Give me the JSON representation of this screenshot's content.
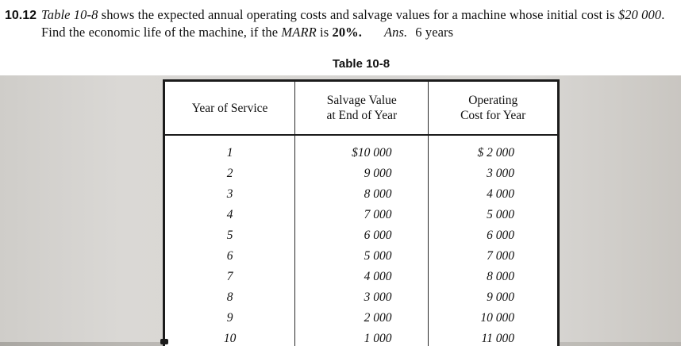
{
  "problem": {
    "number": "10.12",
    "seg_table_ref": "Table 10-8",
    "seg_body_1": " shows the expected annual operating costs and salvage values for a machine whose initial cost is ",
    "seg_cost": "$20 000",
    "seg_body_2": ". Find the economic life of the machine, if the ",
    "seg_marr": "MARR",
    "seg_body_3": " is ",
    "seg_rate": "20%.",
    "ans_label": "Ans.",
    "ans_value": "6 years"
  },
  "table": {
    "caption": "Table 10-8",
    "headers": {
      "year": "Year of Service",
      "salvage": [
        "Salvage Value",
        "at End of Year"
      ],
      "operating": [
        "Operating",
        "Cost for Year"
      ]
    },
    "rows": [
      {
        "year": "1",
        "salvage": "$10 000",
        "operating": "$ 2 000"
      },
      {
        "year": "2",
        "salvage": "9 000",
        "operating": "3 000"
      },
      {
        "year": "3",
        "salvage": "8 000",
        "operating": "4 000"
      },
      {
        "year": "4",
        "salvage": "7 000",
        "operating": "5 000"
      },
      {
        "year": "5",
        "salvage": "6 000",
        "operating": "6 000"
      },
      {
        "year": "6",
        "salvage": "5 000",
        "operating": "7 000"
      },
      {
        "year": "7",
        "salvage": "4 000",
        "operating": "8 000"
      },
      {
        "year": "8",
        "salvage": "3 000",
        "operating": "9 000"
      },
      {
        "year": "9",
        "salvage": "2 000",
        "operating": "10 000"
      },
      {
        "year": "10",
        "salvage": "1 000",
        "operating": "11 000"
      }
    ]
  }
}
